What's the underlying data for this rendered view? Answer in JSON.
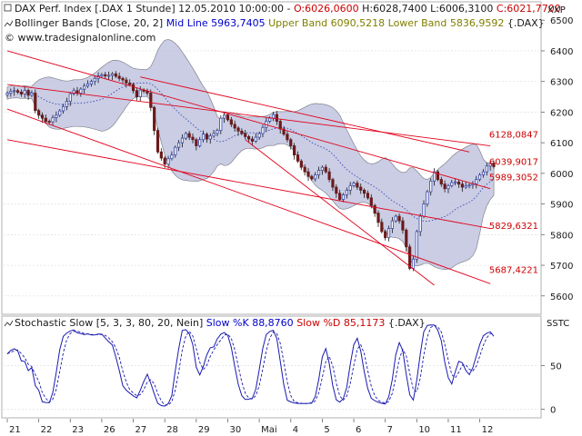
{
  "header": {
    "line1_prefix": "DAX Perf. Index [.DAX  1 Stunde] 12.05.2010 10:00:00 - ",
    "open": "O:6026,0600",
    "high": "H:6028,7400",
    "low": "L:6006,3100",
    "close": "C:6021,7700",
    "line2_prefix": "Bollinger Bands [Close, 20, 2] ",
    "mid": "Mid Line 5963,7405",
    "bands": "Upper Band 6090,5218 Lower Band 5836,9592",
    "line2_suffix": " {.DAX}",
    "copyright": "© www.tradesignalonline.com"
  },
  "colors": {
    "candle_up": "#3a4aa8",
    "candle_down": "#6a1a1a",
    "mid_line": "#2b3fae",
    "band_fill": "#b8bde8",
    "band_fill_outside": "#c8c8c8",
    "trendline": "#e2001a",
    "price_axis_text": "#c00000",
    "stoch_k": "#1a1ab0",
    "stoch_d": "#1a1ab0",
    "label_red": "#cc0000",
    "label_blue": "#0000cc",
    "label_olive": "#808000"
  },
  "chart_data": [
    {
      "type": "candlestick",
      "title": "DAX Perf. Index [.DAX 1 Stunde]",
      "axis_label": "XXP",
      "ylim": [
        5540,
        6560
      ],
      "yticks": [
        5600,
        5700,
        5800,
        5900,
        6000,
        6100,
        6200,
        6300,
        6400,
        6500
      ],
      "ytick_labels": [
        "5600",
        "5700",
        "5800",
        "5900",
        "6000",
        "6100",
        "6200",
        "6300",
        "6400",
        "6500"
      ],
      "x_labels": [
        "21",
        "22",
        "23",
        "26",
        "27",
        "28",
        "29",
        "30",
        "Mai",
        "4",
        "5",
        "6",
        "7",
        "10",
        "11",
        "12"
      ],
      "x_label_index": [
        0,
        9,
        18,
        27,
        36,
        45,
        54,
        63,
        72,
        81,
        90,
        99,
        108,
        117,
        126,
        135
      ],
      "closes": [
        6262,
        6268,
        6270,
        6265,
        6259,
        6271,
        6255,
        6262,
        6205,
        6190,
        6180,
        6170,
        6168,
        6182,
        6190,
        6204,
        6218,
        6235,
        6260,
        6270,
        6262,
        6275,
        6285,
        6292,
        6300,
        6310,
        6318,
        6322,
        6318,
        6320,
        6325,
        6317,
        6310,
        6305,
        6295,
        6290,
        6270,
        6250,
        6272,
        6268,
        6262,
        6215,
        6140,
        6070,
        6050,
        6030,
        6048,
        6060,
        6085,
        6100,
        6115,
        6130,
        6118,
        6110,
        6090,
        6110,
        6128,
        6112,
        6122,
        6130,
        6140,
        6180,
        6190,
        6175,
        6160,
        6148,
        6138,
        6130,
        6120,
        6112,
        6105,
        6118,
        6130,
        6150,
        6170,
        6180,
        6192,
        6170,
        6145,
        6128,
        6110,
        6090,
        6060,
        6040,
        6020,
        6005,
        5990,
        5982,
        5995,
        6010,
        6020,
        6005,
        5980,
        5955,
        5935,
        5915,
        5930,
        5945,
        5960,
        5968,
        5955,
        5945,
        5935,
        5920,
        5895,
        5870,
        5840,
        5810,
        5790,
        5820,
        5845,
        5860,
        5845,
        5815,
        5760,
        5690,
        5720,
        5810,
        5860,
        5900,
        5940,
        5975,
        6005,
        5980,
        5965,
        5950,
        5960,
        5970,
        5972,
        5965,
        5955,
        5960,
        5962,
        5966,
        5980,
        5995,
        6005,
        6024,
        6034,
        6022
      ],
      "bollinger": {
        "period": 20,
        "stddev": 2,
        "mid_last": 5963.7405,
        "upper_last": 6090.5218,
        "lower_last": 5836.9592
      },
      "trendlines": [
        {
          "from_index": 0,
          "from_price": 6290,
          "to_index": 138,
          "to_price": 6090
        },
        {
          "from_index": 0,
          "from_price": 6110,
          "to_index": 138,
          "to_price": 5820
        },
        {
          "from_index": 0,
          "from_price": 6400,
          "to_index": 138,
          "to_price": 5950
        },
        {
          "from_index": 0,
          "from_price": 6210,
          "to_index": 138,
          "to_price": 5640
        },
        {
          "from_index": 68,
          "from_price": 6110,
          "to_index": 122,
          "to_price": 5635
        },
        {
          "from_index": 38,
          "from_price": 6315,
          "to_index": 132,
          "to_price": 6070
        }
      ],
      "price_labels": [
        {
          "text": "6128,0847",
          "price": 6128,
          "color": "red"
        },
        {
          "text": "6039,9017",
          "price": 6040,
          "color": "red"
        },
        {
          "text": "5989,3052",
          "price": 5989,
          "color": "red"
        },
        {
          "text": "5829,6321",
          "price": 5830,
          "color": "red"
        },
        {
          "text": "5687,4221",
          "price": 5687,
          "color": "red"
        }
      ]
    },
    {
      "type": "line",
      "title": "Stochastic Slow [5, 3, 3, 80, 20, Nein]",
      "axis_label": "SSTC",
      "ylim": [
        -10,
        105
      ],
      "yticks": [
        0,
        50
      ],
      "ytick_labels": [
        "0",
        "50"
      ],
      "series": [
        {
          "name": "Slow %K",
          "value_label": "Slow %K 88,8760"
        },
        {
          "name": "Slow %D",
          "value_label": "Slow %D 85,1173"
        }
      ],
      "header_suffix": " {.DAX}"
    }
  ]
}
